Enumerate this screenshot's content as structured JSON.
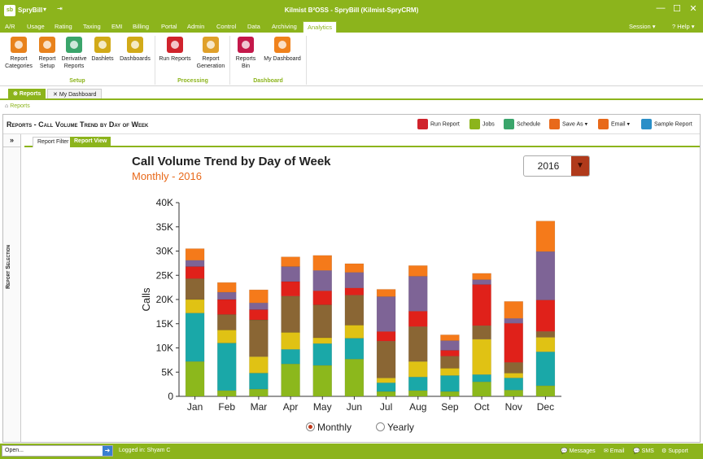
{
  "titlebar": {
    "logo": "sb",
    "app_name": "SpryBill",
    "dropdown": "▾",
    "quick_access": "⇥",
    "window_title": "Kilmist B²OSS - SpryBill (Kilmist-SpryCRM)",
    "minimize": "—",
    "maximize": "☐",
    "close": "✕"
  },
  "menu": {
    "tabs": [
      "A/R",
      "Usage",
      "Rating",
      "Taxing",
      "EMI",
      "Billing",
      "Portal",
      "Admin",
      "Control",
      "Data",
      "Archiving",
      "Analytics"
    ],
    "active_tab": "Analytics",
    "session": "Session ▾",
    "help": "? Help ▾"
  },
  "ribbon": {
    "buttons": [
      {
        "label1": "Report",
        "label2": "Categories",
        "color": "#e8821c"
      },
      {
        "label1": "Report",
        "label2": "Setup",
        "color": "#e8821c"
      },
      {
        "label1": "Derivative",
        "label2": "Reports",
        "color": "#3aa56b"
      },
      {
        "label1": "Dashlets",
        "label2": "",
        "color": "#d2aa18"
      },
      {
        "label1": "Dashboards",
        "label2": "",
        "color": "#d2aa18"
      },
      {
        "label1": "Run Reports",
        "label2": "",
        "color": "#d0232c"
      },
      {
        "label1": "Report",
        "label2": "Generation",
        "color": "#e0a02a"
      },
      {
        "label1": "Reports",
        "label2": "Bin",
        "color": "#c4184a"
      },
      {
        "label1": "My Dashboard",
        "label2": "",
        "color": "#f0821c"
      }
    ],
    "groups": [
      "Setup",
      "Processing",
      "Dashboard"
    ]
  },
  "doc_tabs": [
    {
      "label": "Reports",
      "icon": "reports-icon"
    },
    {
      "label": "My Dashboard",
      "icon": "close-icon"
    }
  ],
  "breadcrumb": "Reports",
  "panel": {
    "title": "Reports - Call Volume Trend by Day of Week",
    "toolbar": [
      "Run Report",
      "Jobs",
      "Schedule",
      "Save As ▾",
      "Email ▾",
      "Sample Report"
    ],
    "toolbar_colors": [
      "#d0232c",
      "#8cb41c",
      "#3aa56b",
      "#e8691a",
      "#e8691a",
      "#2a8fc8"
    ],
    "expand": "»",
    "sidebar_label": "Report Selection",
    "subtabs": [
      "Report Filter",
      "Report View"
    ],
    "active_subtab": "Report View"
  },
  "chart_header": {
    "title": "Call Volume Trend by Day of Week",
    "subtitle": "Monthly - 2016",
    "year": "2016",
    "year_button": "▼"
  },
  "radios": {
    "monthly": "Monthly",
    "yearly": "Yearly",
    "selected": "Monthly"
  },
  "chart_data": {
    "type": "bar",
    "stacked": true,
    "title": "Call Volume Trend by Day of Week",
    "subtitle": "Monthly - 2016",
    "xlabel": "",
    "ylabel": "Calls",
    "ylim": [
      0,
      40000
    ],
    "yticks": [
      "0",
      "5K",
      "10K",
      "15K",
      "20K",
      "25K",
      "30K",
      "35K",
      "40K"
    ],
    "grid": false,
    "categories": [
      "Jan",
      "Feb",
      "Mar",
      "Apr",
      "May",
      "Jun",
      "Jul",
      "Aug",
      "Sep",
      "Oct",
      "Nov",
      "Dec"
    ],
    "series": [
      {
        "color": "#8cb81c",
        "values": [
          7200,
          1200,
          1500,
          6700,
          6400,
          7700,
          1000,
          1200,
          1000,
          3000,
          1300,
          2200
        ]
      },
      {
        "color": "#1aa8a8",
        "values": [
          10000,
          9800,
          3300,
          3000,
          4500,
          4300,
          1800,
          2800,
          3300,
          1500,
          2500,
          7000
        ]
      },
      {
        "color": "#e0c214",
        "values": [
          2800,
          2700,
          3400,
          3500,
          1200,
          2700,
          1000,
          3200,
          1500,
          7300,
          1000,
          3000
        ]
      },
      {
        "color": "#8a6634",
        "values": [
          4300,
          3200,
          7600,
          7500,
          6800,
          6200,
          7600,
          7200,
          2500,
          2800,
          2200,
          1200
        ]
      },
      {
        "color": "#e0211a",
        "values": [
          2500,
          3100,
          2100,
          3000,
          2900,
          1500,
          2000,
          3200,
          1200,
          8500,
          8100,
          6500
        ]
      },
      {
        "color": "#7e6496",
        "values": [
          1300,
          1500,
          1400,
          3100,
          4200,
          3200,
          7200,
          7200,
          2000,
          1000,
          1000,
          10000
        ]
      },
      {
        "color": "#f57a1a",
        "values": [
          2400,
          2000,
          2700,
          2000,
          3100,
          1800,
          1500,
          2200,
          1200,
          1300,
          3500,
          6300
        ]
      }
    ]
  },
  "statusbar": {
    "open_placeholder": "Open...",
    "open_button": "➜",
    "logged_in": "Logged in: Shyam C",
    "messages": "💬 Messages",
    "email": "✉ Email",
    "sms": "💬 SMS",
    "support": "⚙ Support"
  }
}
